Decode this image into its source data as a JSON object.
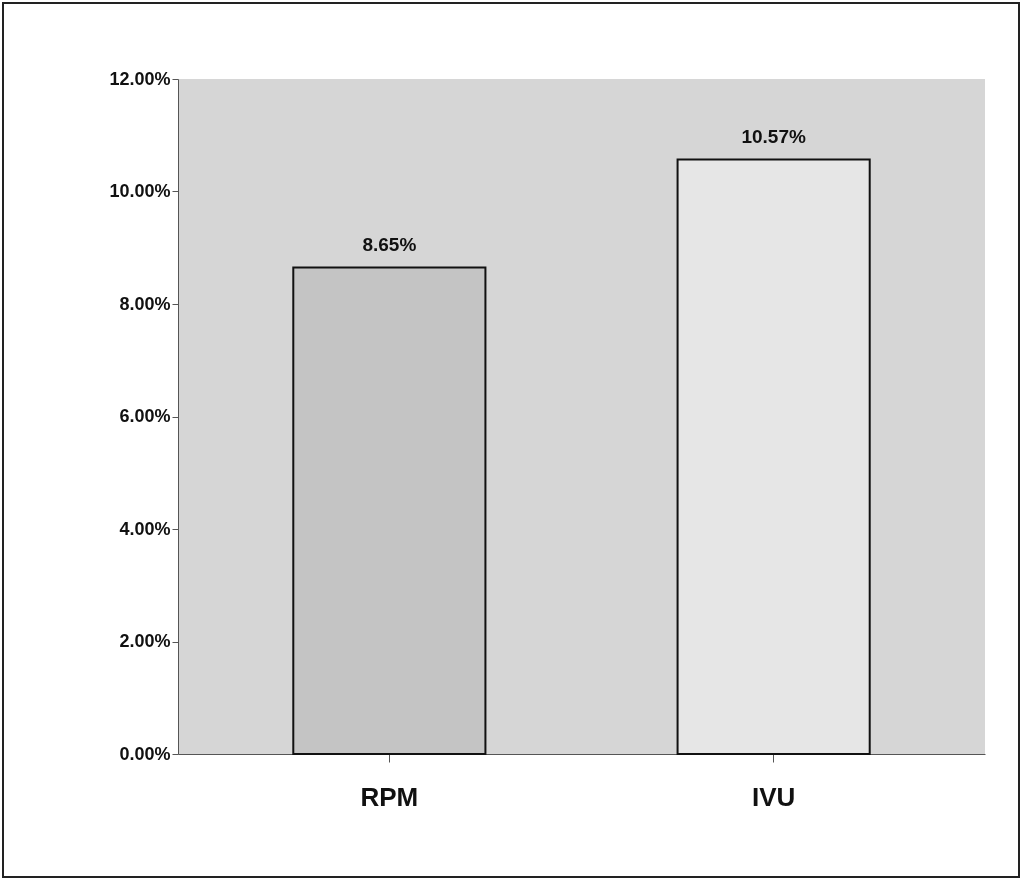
{
  "chart_data": {
    "type": "bar",
    "categories": [
      "RPM",
      "IVU"
    ],
    "values": [
      8.65,
      10.57
    ],
    "value_labels": [
      "8.65%",
      "10.57%"
    ],
    "colors": [
      "#c4c4c4",
      "#e6e6e6"
    ],
    "ylim": [
      0,
      12
    ],
    "yticks": [
      {
        "value": 0,
        "label": "0.00%"
      },
      {
        "value": 2,
        "label": "2.00%"
      },
      {
        "value": 4,
        "label": "4.00%"
      },
      {
        "value": 6,
        "label": "6.00%"
      },
      {
        "value": 8,
        "label": "8.00%"
      },
      {
        "value": 10,
        "label": "10.00%"
      },
      {
        "value": 12,
        "label": "12.00%"
      }
    ],
    "grid": false
  }
}
